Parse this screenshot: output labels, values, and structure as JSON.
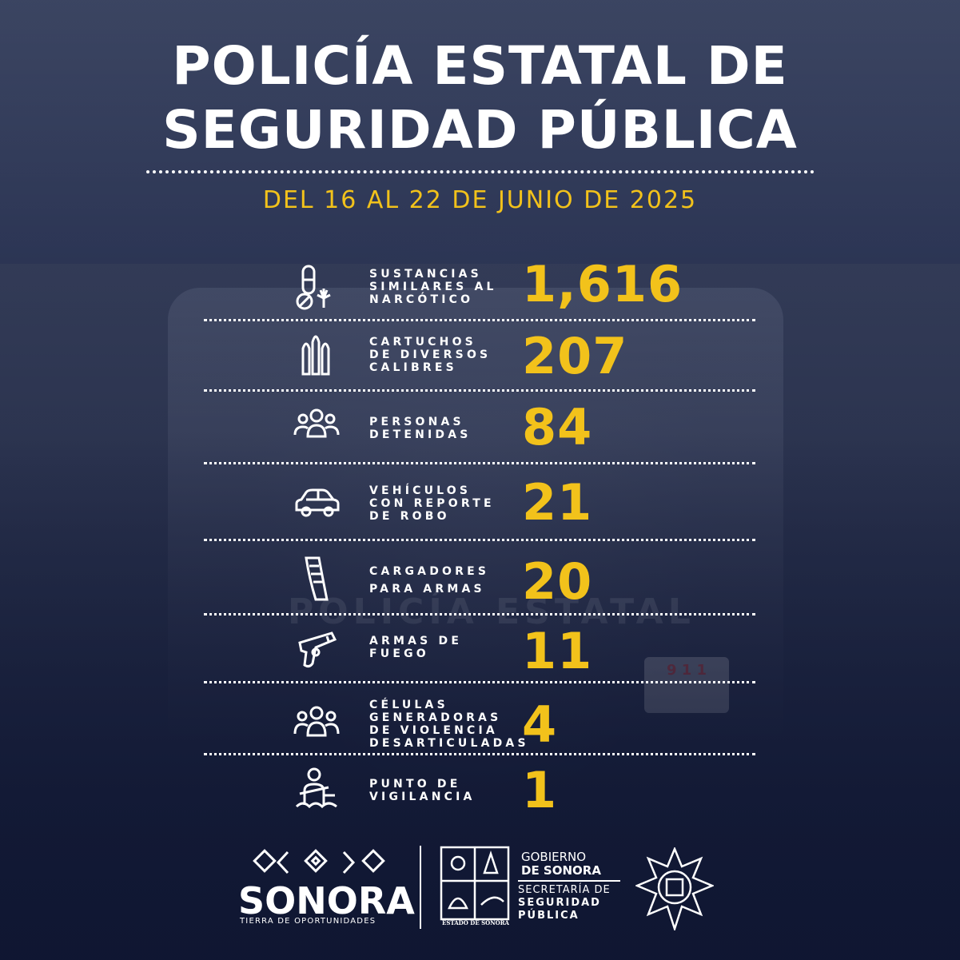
{
  "title": {
    "line1": "POLICÍA ESTATAL DE",
    "line2": "SEGURIDAD PÚBLICA"
  },
  "date": "DEL 16 AL 22 DE JUNIO DE 2025",
  "colors": {
    "accent": "#f2c21b",
    "text": "#ffffff",
    "background": "#1b2340"
  },
  "stats": [
    {
      "icon": "pills-cannabis-icon",
      "label": "SUSTANCIAS\nSIMILARES AL\nNARCÓTICO",
      "value": "1,616"
    },
    {
      "icon": "bullets-icon",
      "label": "CARTUCHOS\nDE DIVERSOS\nCALIBRES",
      "value": "207"
    },
    {
      "icon": "people-group-icon",
      "label": "PERSONAS\nDETENIDAS",
      "value": "84"
    },
    {
      "icon": "car-icon",
      "label": "VEHÍCULOS\nCON REPORTE\nDE ROBO",
      "value": "21"
    },
    {
      "icon": "magazine-icon",
      "label": "CARGADORES\nPARA ARMAS",
      "value": "20"
    },
    {
      "icon": "handgun-icon",
      "label": "ARMAS DE\nFUEGO",
      "value": "11"
    },
    {
      "icon": "group-cells-icon",
      "label": "CÉLULAS\nGENERADORAS\nDE VIOLENCIA\nDESARTICULADAS",
      "value": "4"
    },
    {
      "icon": "soldier-checkpoint-icon",
      "label": "PUNTO DE\nVIGILANCIA",
      "value": "1"
    }
  ],
  "background_text": {
    "truck": "POLICÍA ESTATAL",
    "plate": "9 1 1"
  },
  "footer": {
    "sonora": "SONORA",
    "tagline": "TIERRA DE OPORTUNIDADES",
    "gobierno_1": "GOBIERNO",
    "gobierno_2": "DE SONORA",
    "secretaria": "SECRETARÍA DE",
    "seguridad": "SEGURIDAD",
    "publica": "PÚBLICA",
    "escudo_text": "ESTADO DE SONORA"
  }
}
